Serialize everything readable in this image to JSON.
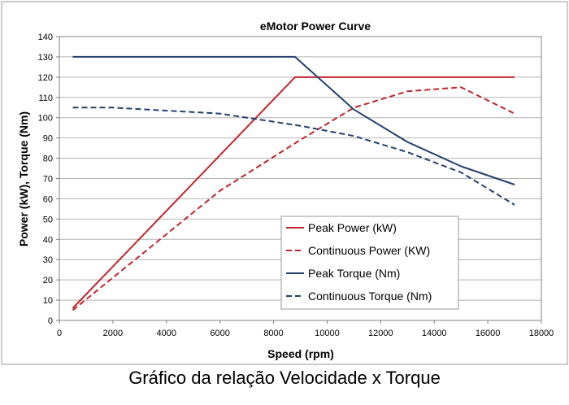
{
  "chart_data": {
    "type": "line",
    "title": "eMotor Power Curve",
    "xlabel": "Speed (rpm)",
    "ylabel": "Power (kW), Torque (Nm)",
    "xlim": [
      0,
      18000
    ],
    "ylim": [
      0,
      140
    ],
    "xticks": [
      0,
      2000,
      4000,
      6000,
      8000,
      10000,
      12000,
      14000,
      16000,
      18000
    ],
    "yticks": [
      0,
      10,
      20,
      30,
      40,
      50,
      60,
      70,
      80,
      90,
      100,
      110,
      120,
      130,
      140
    ],
    "grid": "horizontal",
    "legend_position": "center-right",
    "series": [
      {
        "name": "Peak Power (kW)",
        "color": "#C0272D",
        "dash": "solid",
        "x": [
          500,
          8800,
          17000
        ],
        "y": [
          6,
          120,
          120
        ]
      },
      {
        "name": "Continuous Power (KW)",
        "color": "#C0272D",
        "dash": "dashed",
        "x": [
          500,
          6000,
          9000,
          11000,
          13000,
          15000,
          17000
        ],
        "y": [
          5,
          64,
          89,
          105,
          113,
          115,
          102
        ]
      },
      {
        "name": "Peak Torque (Nm)",
        "color": "#24406E",
        "dash": "solid",
        "x": [
          500,
          8800,
          11000,
          13000,
          15000,
          17000
        ],
        "y": [
          130,
          130,
          104,
          88,
          76,
          67
        ]
      },
      {
        "name": "Continuous Torque (Nm)",
        "color": "#24406E",
        "dash": "dashed",
        "x": [
          500,
          2000,
          6000,
          9000,
          11000,
          13000,
          15000,
          17000
        ],
        "y": [
          105,
          105,
          102,
          96,
          91,
          83,
          73,
          57
        ]
      }
    ]
  },
  "caption": "Gráfico da relação Velocidade x Torque"
}
